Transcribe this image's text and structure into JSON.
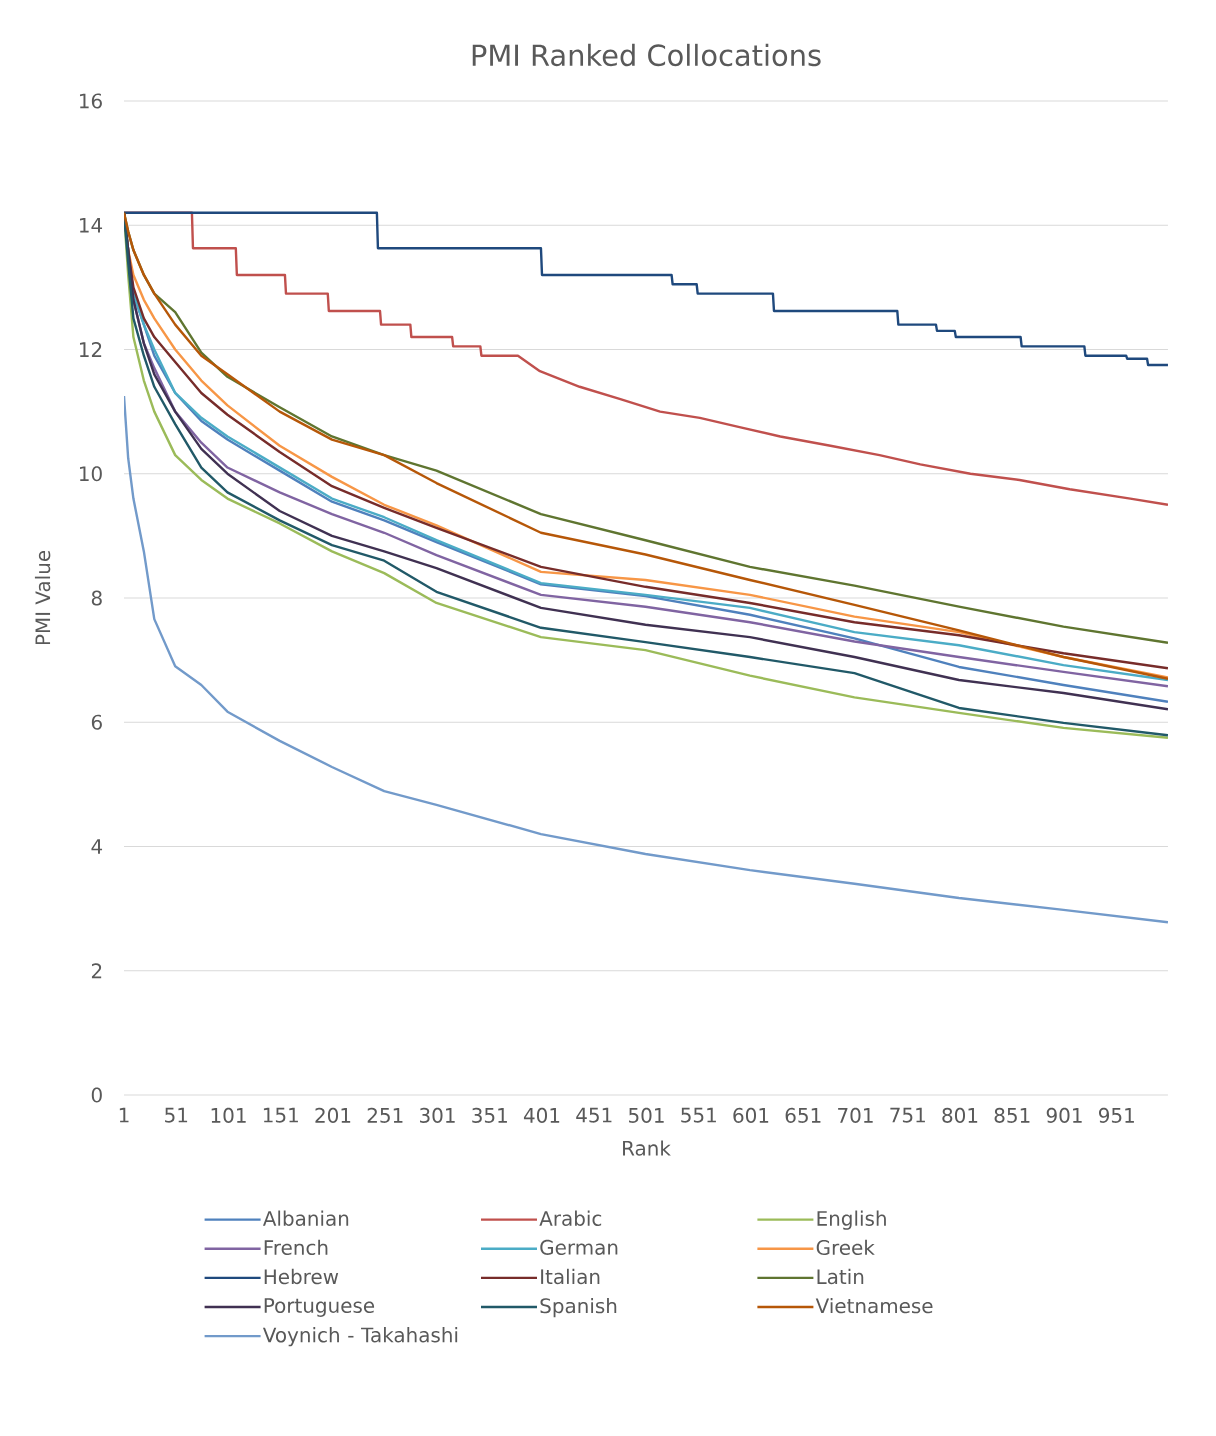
{
  "chart_data": {
    "type": "line",
    "title": "PMI Ranked Collocations",
    "xlabel": "Rank",
    "ylabel": "PMI Value",
    "xlim": [
      1,
      1000
    ],
    "xticks": [
      1,
      51,
      101,
      151,
      201,
      251,
      301,
      351,
      401,
      451,
      501,
      551,
      601,
      651,
      701,
      751,
      801,
      851,
      901,
      951
    ],
    "ylim": [
      0,
      16
    ],
    "yticks": [
      0,
      2,
      4,
      6,
      8,
      10,
      12,
      14,
      16
    ],
    "grid": "y",
    "legend": "bottom",
    "x": [
      1,
      5,
      10,
      20,
      30,
      50,
      75,
      100,
      150,
      200,
      250,
      300,
      400,
      500,
      600,
      700,
      800,
      900,
      1000
    ],
    "series": [
      {
        "name": "Albanian",
        "color": "#4f81bd",
        "values": [
          14.2,
          13.6,
          12.9,
          12.4,
          11.9,
          11.3,
          10.85,
          10.55,
          10.05,
          9.55,
          9.25,
          8.9,
          8.22,
          8.03,
          7.73,
          7.35,
          6.89,
          6.6,
          6.33
        ]
      },
      {
        "name": "Arabic",
        "color": "#c0504d",
        "x": [
          1,
          66,
          67,
          108,
          109,
          155,
          156,
          196,
          197,
          246,
          247,
          275,
          276,
          315,
          316,
          342,
          343,
          378,
          399,
          437,
          476,
          514,
          552,
          590,
          629,
          677,
          724,
          763,
          811,
          858,
          906,
          964,
          1000
        ],
        "values": [
          14.2,
          14.2,
          13.63,
          13.63,
          13.2,
          13.2,
          12.9,
          12.9,
          12.62,
          12.62,
          12.4,
          12.4,
          12.2,
          12.2,
          12.05,
          12.05,
          11.9,
          11.9,
          11.65,
          11.4,
          11.2,
          11.0,
          10.9,
          10.75,
          10.6,
          10.45,
          10.3,
          10.15,
          10.0,
          9.9,
          9.75,
          9.6,
          9.5
        ]
      },
      {
        "name": "English",
        "color": "#9bbb59",
        "values": [
          14.2,
          13.2,
          12.2,
          11.5,
          11.0,
          10.3,
          9.9,
          9.6,
          9.2,
          8.75,
          8.4,
          7.92,
          7.37,
          7.16,
          6.75,
          6.4,
          6.15,
          5.91,
          5.75
        ]
      },
      {
        "name": "French",
        "color": "#8064a2",
        "values": [
          14.2,
          13.6,
          12.8,
          12.1,
          11.7,
          11.0,
          10.5,
          10.1,
          9.7,
          9.35,
          9.05,
          8.69,
          8.05,
          7.86,
          7.61,
          7.3,
          7.05,
          6.81,
          6.58
        ]
      },
      {
        "name": "German",
        "color": "#4bacc6",
        "values": [
          14.2,
          13.6,
          12.9,
          12.4,
          12.0,
          11.3,
          10.9,
          10.6,
          10.1,
          9.6,
          9.3,
          8.93,
          8.24,
          8.05,
          7.84,
          7.45,
          7.24,
          6.92,
          6.68
        ]
      },
      {
        "name": "Greek",
        "color": "#f79646",
        "values": [
          14.2,
          13.6,
          13.2,
          12.8,
          12.5,
          12.0,
          11.5,
          11.1,
          10.45,
          9.95,
          9.5,
          9.17,
          8.42,
          8.29,
          8.05,
          7.7,
          7.45,
          7.05,
          6.72
        ]
      },
      {
        "name": "Hebrew",
        "color": "#1f497d",
        "x": [
          1,
          243,
          244,
          400,
          401,
          525,
          526,
          549,
          550,
          622,
          623,
          741,
          742,
          778,
          779,
          796,
          797,
          859,
          860,
          920,
          921,
          960,
          961,
          980,
          981,
          1000
        ],
        "values": [
          14.2,
          14.2,
          13.63,
          13.63,
          13.2,
          13.2,
          13.05,
          13.05,
          12.9,
          12.9,
          12.62,
          12.62,
          12.4,
          12.4,
          12.3,
          12.3,
          12.2,
          12.2,
          12.05,
          12.05,
          11.9,
          11.9,
          11.85,
          11.85,
          11.75,
          11.75
        ]
      },
      {
        "name": "Italian",
        "color": "#772c2a",
        "values": [
          14.2,
          13.6,
          13.0,
          12.5,
          12.2,
          11.8,
          11.3,
          10.95,
          10.35,
          9.8,
          9.45,
          9.13,
          8.5,
          8.18,
          7.92,
          7.61,
          7.4,
          7.11,
          6.87
        ]
      },
      {
        "name": "Latin",
        "color": "#5f7530",
        "values": [
          14.2,
          13.9,
          13.6,
          13.2,
          12.9,
          12.6,
          11.95,
          11.56,
          11.07,
          10.6,
          10.3,
          10.05,
          9.35,
          8.93,
          8.5,
          8.2,
          7.86,
          7.54,
          7.28
        ]
      },
      {
        "name": "Portuguese",
        "color": "#403152",
        "values": [
          14.2,
          13.6,
          12.8,
          12.1,
          11.6,
          11.0,
          10.4,
          10.0,
          9.4,
          9.0,
          8.75,
          8.48,
          7.84,
          7.57,
          7.37,
          7.05,
          6.68,
          6.47,
          6.21
        ]
      },
      {
        "name": "Spanish",
        "color": "#215968",
        "values": [
          14.2,
          13.4,
          12.5,
          11.9,
          11.4,
          10.8,
          10.1,
          9.7,
          9.25,
          8.85,
          8.6,
          8.1,
          7.52,
          7.29,
          7.05,
          6.79,
          6.23,
          5.99,
          5.79
        ]
      },
      {
        "name": "Vietnamese",
        "color": "#b65708",
        "values": [
          14.2,
          13.9,
          13.6,
          13.2,
          12.9,
          12.4,
          11.9,
          11.6,
          11.0,
          10.55,
          10.3,
          9.85,
          9.05,
          8.7,
          8.29,
          7.89,
          7.48,
          7.05,
          6.7
        ]
      },
      {
        "name": "Voynich - Takahashi",
        "color": "#729aca",
        "values": [
          11.25,
          10.25,
          9.6,
          8.75,
          7.66,
          6.9,
          6.6,
          6.17,
          5.7,
          5.28,
          4.89,
          4.67,
          4.2,
          3.88,
          3.62,
          3.4,
          3.17,
          2.98,
          2.78
        ]
      }
    ]
  }
}
